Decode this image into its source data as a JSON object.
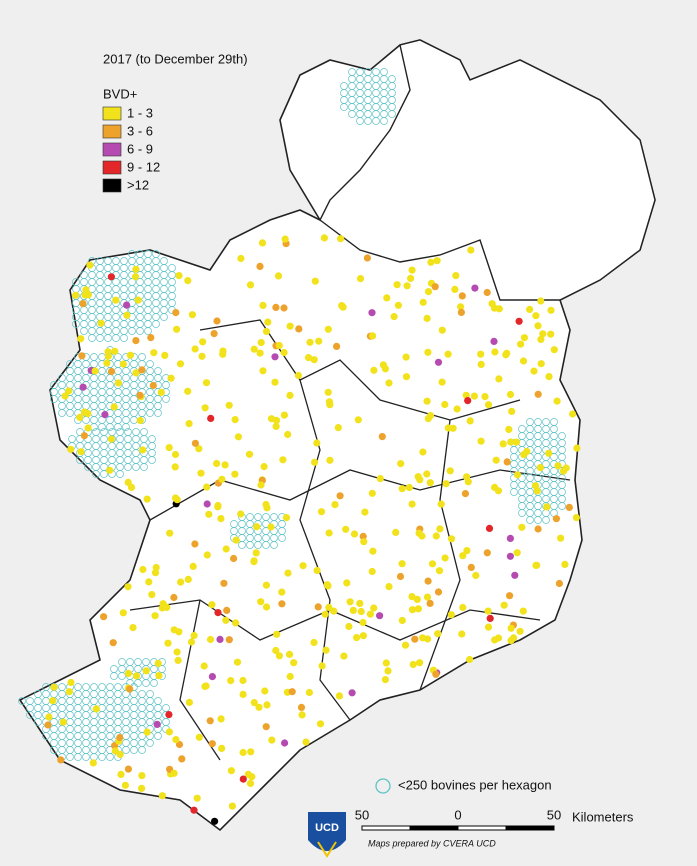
{
  "map": {
    "title": "2017 (to December 29th)",
    "legend": {
      "title": "BVD+",
      "items": [
        {
          "label": "1 - 3",
          "color": "#f2e21b"
        },
        {
          "label": "3 - 6",
          "color": "#eda22c"
        },
        {
          "label": "6 - 9",
          "color": "#b54bb0"
        },
        {
          "label": "9 - 12",
          "color": "#e2262a"
        },
        {
          "label": ">12",
          "color": "#000000"
        }
      ]
    },
    "hexagon_note": "<250 bovines per hexagon",
    "hexagon_color": "#5fc3c6",
    "scale_bar": {
      "labels": [
        "50",
        "0",
        "50"
      ],
      "unit": "Kilometers"
    },
    "credit": "Maps prepared by CVERA  UCD",
    "logo": "UCD"
  }
}
